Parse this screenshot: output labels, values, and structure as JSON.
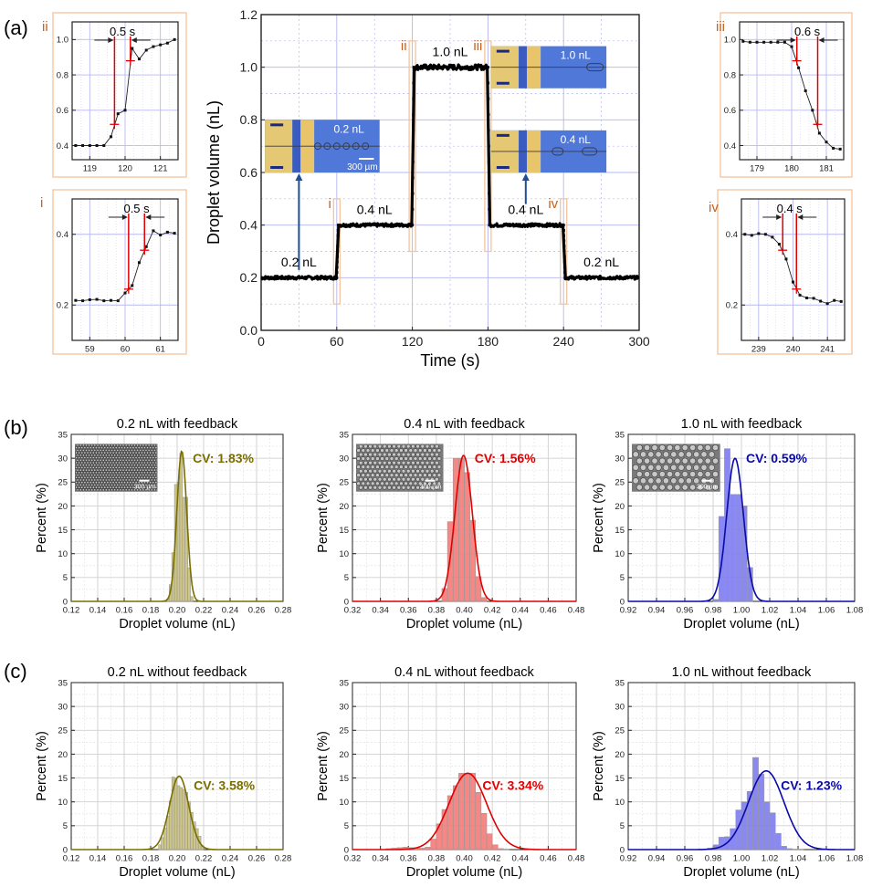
{
  "panel_labels": {
    "a": "(a)",
    "b": "(b)",
    "c": "(c)"
  },
  "colors": {
    "olive": "#7a6e00",
    "olive_fill": "#c9c07a",
    "red": "#e00000",
    "red_fill": "#f47a78",
    "blue": "#0a0aa8",
    "blue_fill": "#7c7cf0",
    "orange": "#c8601a",
    "orange_box": "#f5c49c",
    "grid": "#c8c8ff",
    "arrow_blue": "#1d4f99"
  },
  "chart_data": [
    {
      "id": "main",
      "type": "line",
      "title": "",
      "xlabel": "Time (s)",
      "ylabel": "Droplet volume (nL)",
      "xlim": [
        0,
        300
      ],
      "ylim": [
        0,
        1.2
      ],
      "xticks": [
        "0",
        "60",
        "120",
        "180",
        "240",
        "300"
      ],
      "yticks": [
        "0.0",
        "0.2",
        "0.4",
        "0.6",
        "0.8",
        "1.0",
        "1.2"
      ],
      "grid": true,
      "series": [
        {
          "name": "Droplet volume",
          "segments": [
            {
              "t_start": 0,
              "t_end": 60,
              "value": 0.2
            },
            {
              "t_start": 60,
              "t_end": 120,
              "value": 0.4
            },
            {
              "t_start": 120,
              "t_end": 180,
              "value": 1.0
            },
            {
              "t_start": 180,
              "t_end": 240,
              "value": 0.4
            },
            {
              "t_start": 240,
              "t_end": 300,
              "value": 0.2
            }
          ]
        }
      ],
      "annotations": [
        {
          "text": "0.2 nL",
          "x": 30,
          "y": 0.25
        },
        {
          "text": "0.4 nL",
          "x": 90,
          "y": 0.45
        },
        {
          "text": "1.0 nL",
          "x": 150,
          "y": 1.05
        },
        {
          "text": "0.4 nL",
          "x": 210,
          "y": 0.45
        },
        {
          "text": "0.2 nL",
          "x": 270,
          "y": 0.25
        }
      ],
      "transition_boxes": [
        {
          "label": "i",
          "x": 60,
          "y_range": [
            0.1,
            0.5
          ]
        },
        {
          "label": "ii",
          "x": 120,
          "y_range": [
            0.3,
            1.1
          ]
        },
        {
          "label": "iii",
          "x": 180,
          "y_range": [
            0.3,
            1.1
          ]
        },
        {
          "label": "iv",
          "x": 240,
          "y_range": [
            0.1,
            0.5
          ]
        }
      ],
      "insets": [
        {
          "label": "0.2 nL",
          "scale_bar": "300 µm",
          "arrow_to_t": 30
        },
        {
          "label": "1.0 nL"
        },
        {
          "label": "0.4 nL",
          "arrow_to_t": 210
        }
      ]
    },
    {
      "id": "zoom-ii",
      "label": "ii",
      "type": "line",
      "xlim": [
        118.5,
        121.5
      ],
      "ylim": [
        0.32,
        1.1
      ],
      "xticks": [
        "119",
        "120",
        "121"
      ],
      "yticks": [
        "0.4",
        "0.6",
        "0.8",
        "1.0"
      ],
      "duration_label": "0.5 s",
      "markers": [
        [
          119.7,
          0.52
        ],
        [
          120.15,
          0.88
        ]
      ],
      "x": [
        118.6,
        118.8,
        119.0,
        119.2,
        119.4,
        119.6,
        119.8,
        120.0,
        120.2,
        120.4,
        120.6,
        120.8,
        121.0,
        121.2,
        121.4
      ],
      "y": [
        0.4,
        0.4,
        0.4,
        0.4,
        0.4,
        0.45,
        0.58,
        0.6,
        0.95,
        0.89,
        0.94,
        0.96,
        0.97,
        0.98,
        1.0
      ]
    },
    {
      "id": "zoom-i",
      "label": "i",
      "type": "line",
      "xlim": [
        58.5,
        61.5
      ],
      "ylim": [
        0.1,
        0.5
      ],
      "xticks": [
        "59",
        "60",
        "61"
      ],
      "yticks": [
        "0.2",
        "0.4"
      ],
      "duration_label": "0.5 s",
      "markers": [
        [
          60.1,
          0.245
        ],
        [
          60.55,
          0.355
        ]
      ],
      "x": [
        58.6,
        58.8,
        59.0,
        59.2,
        59.4,
        59.6,
        59.8,
        60.0,
        60.2,
        60.4,
        60.6,
        60.8,
        61.0,
        61.2,
        61.4
      ],
      "y": [
        0.213,
        0.212,
        0.215,
        0.216,
        0.212,
        0.213,
        0.212,
        0.234,
        0.255,
        0.32,
        0.365,
        0.41,
        0.398,
        0.406,
        0.403
      ]
    },
    {
      "id": "zoom-iii",
      "label": "iii",
      "type": "line",
      "xlim": [
        178.5,
        181.5
      ],
      "ylim": [
        0.32,
        1.1
      ],
      "xticks": [
        "179",
        "180",
        "181"
      ],
      "yticks": [
        "0.4",
        "0.6",
        "0.8",
        "1.0"
      ],
      "duration_label": "0.6 s",
      "markers": [
        [
          180.15,
          0.88
        ],
        [
          180.75,
          0.52
        ]
      ],
      "x": [
        178.6,
        178.8,
        179.0,
        179.2,
        179.4,
        179.6,
        179.8,
        180.0,
        180.2,
        180.4,
        180.6,
        180.8,
        181.0,
        181.2,
        181.4
      ],
      "y": [
        0.99,
        0.985,
        0.985,
        0.985,
        0.985,
        0.985,
        0.985,
        0.96,
        0.84,
        0.71,
        0.6,
        0.47,
        0.42,
        0.385,
        0.38
      ]
    },
    {
      "id": "zoom-iv",
      "label": "iv",
      "type": "line",
      "xlim": [
        238.5,
        241.5
      ],
      "ylim": [
        0.1,
        0.5
      ],
      "xticks": [
        "239",
        "240",
        "241"
      ],
      "yticks": [
        "0.2",
        "0.4"
      ],
      "duration_label": "0.4 s",
      "markers": [
        [
          239.7,
          0.355
        ],
        [
          240.1,
          0.245
        ]
      ],
      "x": [
        238.6,
        238.8,
        239.0,
        239.2,
        239.4,
        239.6,
        239.8,
        240.0,
        240.2,
        240.4,
        240.6,
        240.8,
        241.0,
        241.2,
        241.4
      ],
      "y": [
        0.4,
        0.397,
        0.402,
        0.4,
        0.392,
        0.372,
        0.33,
        0.265,
        0.228,
        0.22,
        0.219,
        0.211,
        0.204,
        0.213,
        0.21
      ]
    },
    {
      "id": "hist-b1",
      "type": "bar",
      "title": "0.2 nL with feedback",
      "xlabel": "Droplet volume (nL)",
      "ylabel": "Percent (%)",
      "xlim": [
        0.12,
        0.28
      ],
      "ylim": [
        0,
        35
      ],
      "xticks": [
        "0.12",
        "0.14",
        "0.16",
        "0.18",
        "0.20",
        "0.22",
        "0.24",
        "0.26",
        "0.28"
      ],
      "yticks": [
        "0",
        "5",
        "10",
        "15",
        "20",
        "25",
        "30",
        "35"
      ],
      "cv_label": "CV: 1.83%",
      "color": "olive",
      "inset_scale": "300 µm",
      "bin_width": 0.002,
      "x": [
        0.193,
        0.195,
        0.197,
        0.199,
        0.201,
        0.203,
        0.205,
        0.207,
        0.209,
        0.211
      ],
      "values": [
        0.5,
        3.5,
        10.2,
        24.5,
        25,
        31,
        21.8,
        21.8,
        7,
        1
      ],
      "fit": {
        "mean": 0.2035,
        "sd": 0.0037,
        "peak": 31.5
      }
    },
    {
      "id": "hist-b2",
      "type": "bar",
      "title": "0.4 nL with feedback",
      "xlabel": "Droplet volume (nL)",
      "ylabel": "Percent (%)",
      "xlim": [
        0.32,
        0.48
      ],
      "ylim": [
        0,
        35
      ],
      "xticks": [
        "0.32",
        "0.34",
        "0.36",
        "0.38",
        "0.40",
        "0.42",
        "0.44",
        "0.46",
        "0.48"
      ],
      "yticks": [
        "0",
        "5",
        "10",
        "15",
        "20",
        "25",
        "30",
        "35"
      ],
      "cv_label": "CV: 1.56%",
      "color": "red",
      "inset_scale": "300 µm",
      "bin_width": 0.004,
      "x": [
        0.386,
        0.39,
        0.394,
        0.398,
        0.402,
        0.406,
        0.41,
        0.414
      ],
      "values": [
        2.7,
        16.7,
        30,
        30,
        27,
        17,
        5.2,
        0.8
      ],
      "fit": {
        "mean": 0.3995,
        "sd": 0.0062,
        "peak": 30.6
      }
    },
    {
      "id": "hist-b3",
      "type": "bar",
      "title": "1.0 nL with feedback",
      "xlabel": "Droplet volume (nL)",
      "ylabel": "Percent (%)",
      "xlim": [
        0.92,
        1.08
      ],
      "ylim": [
        0,
        35
      ],
      "xticks": [
        "0.92",
        "0.94",
        "0.96",
        "0.98",
        "1.00",
        "1.02",
        "1.04",
        "1.06",
        "1.08"
      ],
      "yticks": [
        "0",
        "5",
        "10",
        "15",
        "20",
        "25",
        "30",
        "35"
      ],
      "cv_label": "CV: 0.59%",
      "color": "blue",
      "inset_scale": "300 µm",
      "bin_width": 0.004,
      "x": [
        0.982,
        0.986,
        0.99,
        0.994,
        0.998,
        1.002,
        1.006
      ],
      "values": [
        0.4,
        17.8,
        32,
        22.4,
        22.4,
        20,
        7.1
      ],
      "fit": {
        "mean": 0.9955,
        "sd": 0.0059,
        "peak": 30
      }
    },
    {
      "id": "hist-c1",
      "type": "bar",
      "title": "0.2 nL without feedback",
      "xlabel": "Droplet volume (nL)",
      "ylabel": "Percent (%)",
      "xlim": [
        0.12,
        0.28
      ],
      "ylim": [
        0,
        35
      ],
      "xticks": [
        "0.12",
        "0.14",
        "0.16",
        "0.18",
        "0.20",
        "0.22",
        "0.24",
        "0.26",
        "0.28"
      ],
      "yticks": [
        "0",
        "5",
        "10",
        "15",
        "20",
        "25",
        "30",
        "35"
      ],
      "cv_label": "CV: 3.58%",
      "color": "olive",
      "bin_width": 0.002,
      "x": [
        0.187,
        0.189,
        0.191,
        0.193,
        0.195,
        0.197,
        0.199,
        0.201,
        0.203,
        0.205,
        0.207,
        0.209,
        0.211,
        0.213,
        0.215,
        0.217,
        0.219
      ],
      "values": [
        1,
        2.5,
        4.5,
        7,
        10.2,
        15.2,
        15,
        13.4,
        13,
        12.6,
        12,
        10,
        7.8,
        5.8,
        4.4,
        2.8,
        0.8
      ],
      "fit": {
        "mean": 0.2015,
        "sd": 0.0072,
        "peak": 15.4
      }
    },
    {
      "id": "hist-c2",
      "type": "bar",
      "title": "0.4 nL without feedback",
      "xlabel": "Droplet volume (nL)",
      "ylabel": "Percent (%)",
      "xlim": [
        0.32,
        0.48
      ],
      "ylim": [
        0,
        35
      ],
      "xticks": [
        "0.32",
        "0.34",
        "0.36",
        "0.38",
        "0.40",
        "0.42",
        "0.44",
        "0.46",
        "0.48"
      ],
      "yticks": [
        "0",
        "5",
        "10",
        "15",
        "20",
        "25",
        "30",
        "35"
      ],
      "cv_label": "CV: 3.34%",
      "color": "red",
      "bin_width": 0.004,
      "x": [
        0.346,
        0.35,
        0.354,
        0.358,
        0.362,
        0.366,
        0.37,
        0.374,
        0.378,
        0.382,
        0.386,
        0.39,
        0.394,
        0.398,
        0.402,
        0.406,
        0.41,
        0.414,
        0.418,
        0.422,
        0.426,
        0.43
      ],
      "values": [
        0.2,
        0.3,
        0.4,
        0.5,
        0.4,
        0.3,
        0.3,
        0.5,
        2.2,
        5.4,
        8.4,
        11.3,
        13.4,
        16,
        16,
        16,
        12,
        7.6,
        3.3,
        1,
        0.2,
        0.1
      ],
      "fit": {
        "mean": 0.4025,
        "sd": 0.0134,
        "peak": 16
      }
    },
    {
      "id": "hist-c3",
      "type": "bar",
      "title": "1.0 nL without feedback",
      "xlabel": "Droplet volume (nL)",
      "ylabel": "Percent (%)",
      "xlim": [
        0.92,
        1.08
      ],
      "ylim": [
        0,
        35
      ],
      "xticks": [
        "0.92",
        "0.94",
        "0.96",
        "0.98",
        "1.00",
        "1.02",
        "1.04",
        "1.06",
        "1.08"
      ],
      "yticks": [
        "0",
        "5",
        "10",
        "15",
        "20",
        "25",
        "30",
        "35"
      ],
      "cv_label": "CV: 1.23%",
      "color": "blue",
      "bin_width": 0.004,
      "x": [
        0.978,
        0.982,
        0.986,
        0.99,
        0.994,
        0.998,
        1.002,
        1.006,
        1.01,
        1.014,
        1.018,
        1.022,
        1.026,
        1.03,
        1.034,
        1.038,
        1.042
      ],
      "values": [
        0.3,
        1,
        2.6,
        2.7,
        4.4,
        8.3,
        10,
        12.2,
        19.3,
        15.8,
        10,
        7.7,
        3.4,
        0.7,
        0.2,
        0.1,
        0.1
      ],
      "fit": {
        "mean": 1.0175,
        "sd": 0.0125,
        "peak": 16.5
      }
    }
  ]
}
